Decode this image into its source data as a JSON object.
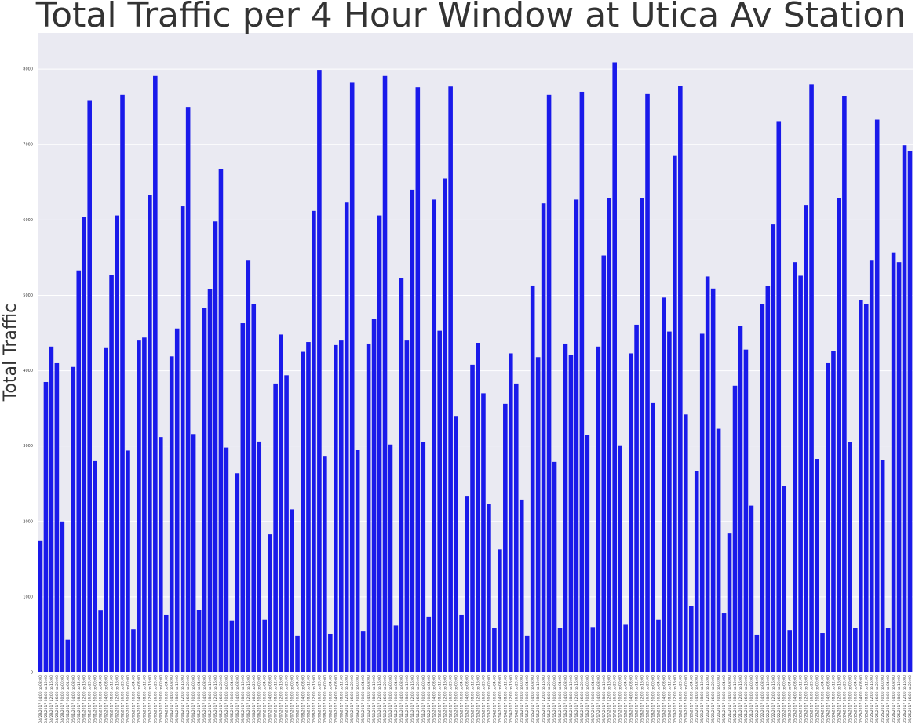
{
  "chart_data": {
    "type": "bar",
    "title": "Total Traffic per 4 Hour Window at Utica Av Station",
    "ylabel": "Total Traffic",
    "color": "#1a1aea",
    "grid": true,
    "ylim": [
      0,
      8480
    ],
    "yticks": [
      0,
      1000,
      2000,
      3000,
      4000,
      5000,
      6000,
      7000,
      8000
    ],
    "categories": [
      "04/28/2017 04:00 to 08:00",
      "04/28/2017 08:00 to 12:00",
      "04/28/2017 12:00 to 16:00",
      "04/28/2017 16:00 to 20:00",
      "04/28/2017 20:00 to 00:00",
      "05/01/2017 00:00 to 04:00",
      "05/01/2017 04:00 to 08:00",
      "05/01/2017 08:00 to 12:00",
      "05/01/2017 12:00 to 16:00",
      "05/01/2017 16:00 to 20:00",
      "05/01/2017 20:00 to 00:00",
      "05/02/2017 00:00 to 04:00",
      "05/02/2017 04:00 to 08:00",
      "05/02/2017 08:00 to 12:00",
      "05/02/2017 12:00 to 16:00",
      "05/02/2017 16:00 to 20:00",
      "05/02/2017 20:00 to 00:00",
      "05/03/2017 00:00 to 04:00",
      "05/03/2017 04:00 to 08:00",
      "05/03/2017 08:00 to 12:00",
      "05/03/2017 12:00 to 16:00",
      "05/03/2017 16:00 to 20:00",
      "05/03/2017 20:00 to 00:00",
      "05/04/2017 00:00 to 04:00",
      "05/04/2017 04:00 to 08:00",
      "05/04/2017 08:00 to 12:00",
      "05/04/2017 12:00 to 16:00",
      "05/04/2017 16:00 to 20:00",
      "05/04/2017 20:00 to 00:00",
      "05/05/2017 00:00 to 04:00",
      "05/05/2017 04:00 to 08:00",
      "05/05/2017 08:00 to 12:00",
      "05/05/2017 12:00 to 16:00",
      "05/05/2017 16:00 to 20:00",
      "05/05/2017 20:00 to 00:00",
      "05/06/2017 00:00 to 04:00",
      "05/06/2017 04:00 to 08:00",
      "05/06/2017 08:00 to 12:00",
      "05/06/2017 12:00 to 16:00",
      "05/06/2017 16:00 to 20:00",
      "05/06/2017 20:00 to 00:00",
      "05/07/2017 00:00 to 04:00",
      "05/07/2017 04:00 to 08:00",
      "05/07/2017 08:00 to 12:00",
      "05/07/2017 12:00 to 16:00",
      "05/07/2017 16:00 to 20:00",
      "05/07/2017 20:00 to 00:00",
      "05/08/2017 00:00 to 04:00",
      "05/08/2017 04:00 to 08:00",
      "05/08/2017 08:00 to 12:00",
      "05/08/2017 12:00 to 16:00",
      "05/08/2017 16:00 to 20:00",
      "05/08/2017 20:00 to 00:00",
      "05/09/2017 00:00 to 04:00",
      "05/09/2017 04:00 to 08:00",
      "05/09/2017 08:00 to 12:00",
      "05/09/2017 12:00 to 16:00",
      "05/09/2017 16:00 to 20:00",
      "05/09/2017 20:00 to 00:00",
      "05/10/2017 00:00 to 04:00",
      "05/10/2017 04:00 to 08:00",
      "05/10/2017 08:00 to 12:00",
      "05/10/2017 12:00 to 16:00",
      "05/10/2017 16:00 to 20:00",
      "05/10/2017 20:00 to 00:00",
      "05/11/2017 00:00 to 04:00",
      "05/11/2017 04:00 to 08:00",
      "05/11/2017 08:00 to 12:00",
      "05/11/2017 12:00 to 16:00",
      "05/11/2017 16:00 to 20:00",
      "05/11/2017 20:00 to 00:00",
      "05/12/2017 00:00 to 04:00",
      "05/12/2017 04:00 to 08:00",
      "05/12/2017 08:00 to 12:00",
      "05/12/2017 12:00 to 16:00",
      "05/12/2017 16:00 to 20:00",
      "05/12/2017 20:00 to 00:00",
      "05/13/2017 00:00 to 04:00",
      "05/13/2017 04:00 to 08:00",
      "05/13/2017 08:00 to 12:00",
      "05/13/2017 12:00 to 16:00",
      "05/13/2017 16:00 to 20:00",
      "05/13/2017 20:00 to 00:00",
      "05/14/2017 00:00 to 04:00",
      "05/14/2017 04:00 to 08:00",
      "05/14/2017 08:00 to 12:00",
      "05/14/2017 12:00 to 16:00",
      "05/14/2017 16:00 to 20:00",
      "05/14/2017 20:00 to 00:00",
      "05/15/2017 00:00 to 04:00",
      "05/15/2017 04:00 to 08:00",
      "05/15/2017 08:00 to 12:00",
      "05/15/2017 12:00 to 16:00",
      "05/15/2017 16:00 to 20:00",
      "05/15/2017 20:00 to 00:00",
      "05/16/2017 00:00 to 04:00",
      "05/16/2017 04:00 to 08:00",
      "05/16/2017 08:00 to 12:00",
      "05/16/2017 12:00 to 16:00",
      "05/16/2017 16:00 to 20:00",
      "05/16/2017 20:00 to 00:00",
      "05/17/2017 00:00 to 04:00",
      "05/17/2017 04:00 to 08:00",
      "05/17/2017 08:00 to 12:00",
      "05/17/2017 12:00 to 16:00",
      "05/17/2017 16:00 to 20:00",
      "05/17/2017 20:00 to 00:00",
      "05/18/2017 00:00 to 04:00",
      "05/18/2017 04:00 to 08:00",
      "05/18/2017 08:00 to 12:00",
      "05/18/2017 12:00 to 16:00",
      "05/18/2017 16:00 to 20:00",
      "05/18/2017 20:00 to 00:00",
      "05/19/2017 00:00 to 04:00",
      "05/19/2017 04:00 to 08:00",
      "05/19/2017 08:00 to 12:00",
      "05/19/2017 12:00 to 16:00",
      "05/19/2017 16:00 to 20:00",
      "05/19/2017 20:00 to 00:00",
      "05/20/2017 00:00 to 04:00",
      "05/20/2017 04:00 to 08:00",
      "05/20/2017 08:00 to 12:00",
      "05/20/2017 12:00 to 16:00",
      "05/20/2017 16:00 to 20:00",
      "05/20/2017 20:00 to 00:00",
      "05/21/2017 00:00 to 04:00",
      "05/21/2017 04:00 to 08:00",
      "05/21/2017 08:00 to 12:00",
      "05/21/2017 12:00 to 16:00",
      "05/21/2017 16:00 to 20:00",
      "05/21/2017 20:00 to 00:00",
      "05/22/2017 00:00 to 04:00",
      "05/22/2017 04:00 to 08:00",
      "05/22/2017 08:00 to 12:00",
      "05/22/2017 12:00 to 16:00",
      "05/22/2017 16:00 to 20:00",
      "05/22/2017 20:00 to 00:00",
      "05/23/2017 00:00 to 04:00",
      "05/23/2017 04:00 to 08:00",
      "05/23/2017 08:00 to 12:00",
      "05/23/2017 12:00 to 16:00",
      "05/23/2017 16:00 to 20:00",
      "05/23/2017 20:00 to 00:00",
      "05/24/2017 00:00 to 04:00",
      "05/24/2017 04:00 to 08:00",
      "05/24/2017 08:00 to 12:00",
      "05/24/2017 12:00 to 16:00",
      "05/24/2017 16:00 to 20:00",
      "05/24/2017 20:00 to 00:00",
      "05/25/2017 00:00 to 04:00",
      "05/25/2017 04:00 to 08:00",
      "05/25/2017 08:00 to 12:00",
      "05/25/2017 12:00 to 16:00",
      "05/25/2017 16:00 to 20:00",
      "05/25/2017 20:00 to 00:00",
      "05/26/2017 00:00 to 04:00",
      "05/26/2017 04:00 to 08:00",
      "05/26/2017 08:00 to 12:00",
      "05/26/2017 12:00 to 16:00",
      "05/26/2017 16:00 to 20:00"
    ],
    "values": [
      1750,
      3850,
      4320,
      4100,
      2000,
      430,
      4050,
      5330,
      6040,
      7580,
      2800,
      820,
      4310,
      5270,
      6060,
      7660,
      2940,
      570,
      4400,
      4440,
      6330,
      7910,
      3120,
      760,
      4190,
      4560,
      6180,
      7490,
      3160,
      830,
      4830,
      5080,
      5980,
      6680,
      2980,
      690,
      2640,
      4630,
      5460,
      4890,
      3060,
      700,
      1830,
      3830,
      4480,
      3940,
      2160,
      480,
      4250,
      4380,
      6120,
      7990,
      2870,
      510,
      4340,
      4400,
      6230,
      7820,
      2950,
      550,
      4360,
      4690,
      6060,
      7910,
      3020,
      620,
      5230,
      4400,
      6400,
      7760,
      3050,
      740,
      6270,
      4530,
      6550,
      7770,
      3400,
      760,
      2340,
      4080,
      4370,
      3700,
      2230,
      590,
      1630,
      3560,
      4230,
      3830,
      2290,
      480,
      5130,
      4180,
      6220,
      7660,
      2790,
      590,
      4360,
      4210,
      6270,
      7700,
      3150,
      600,
      4320,
      5530,
      6290,
      8090,
      3010,
      630,
      4230,
      4610,
      6290,
      7670,
      3570,
      700,
      4970,
      4520,
      6850,
      7780,
      3420,
      880,
      2670,
      4490,
      5250,
      5090,
      3230,
      780,
      1840,
      3800,
      4590,
      4280,
      2210,
      500,
      4890,
      5120,
      5940,
      7310,
      2470,
      560,
      5440,
      5260,
      6200,
      7800,
      2830,
      520,
      4100,
      4260,
      6290,
      7640,
      3050,
      590,
      4940,
      4880,
      5460,
      7330,
      2810,
      590,
      5570,
      5440,
      6990,
      6910
    ]
  }
}
